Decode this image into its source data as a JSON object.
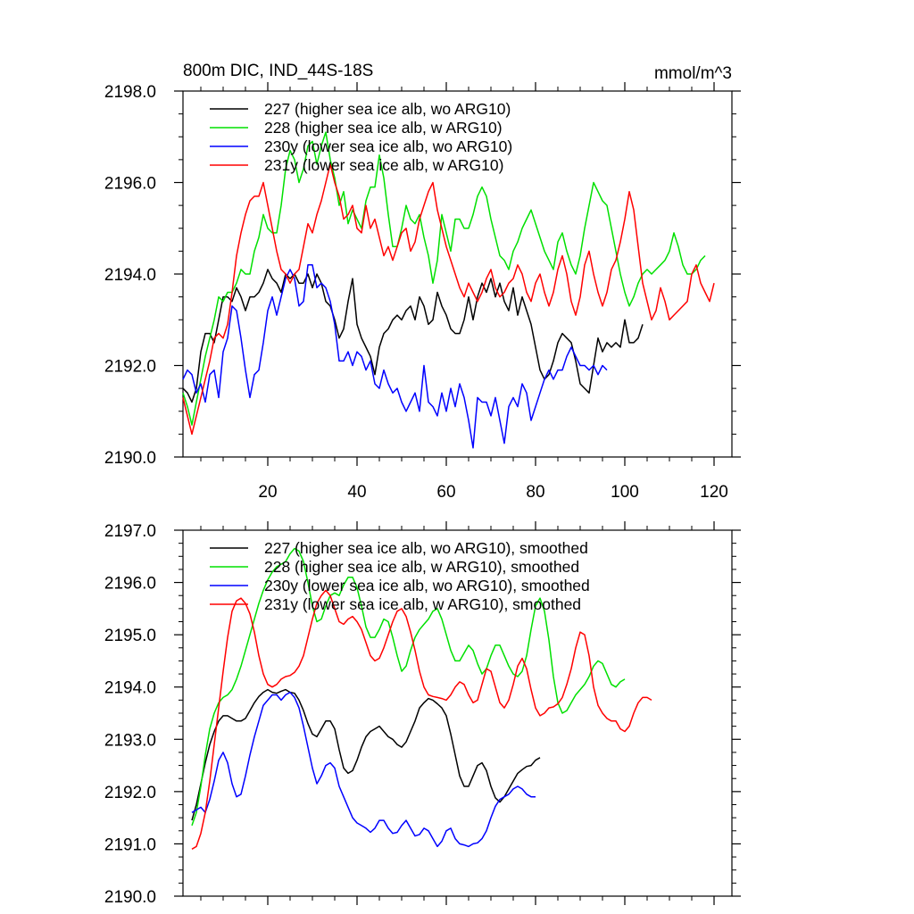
{
  "colors": {
    "227": "#000000",
    "228": "#00e000",
    "230": "#0000ff",
    "231": "#ff0000",
    "axis": "#000000"
  },
  "chart_data": [
    {
      "type": "line",
      "title": "800m DIC, IND_44S-18S",
      "unit_label": "mmol/m^3",
      "xlim": [
        1,
        124
      ],
      "ylim": [
        2190.0,
        2198.0
      ],
      "yticks": [
        2190.0,
        2192.0,
        2194.0,
        2196.0,
        2198.0
      ],
      "ytick_labels": [
        "2190.0",
        "2192.0",
        "2194.0",
        "2196.0",
        "2198.0"
      ],
      "xticks": [
        20,
        40,
        60,
        80,
        100,
        120
      ],
      "xtick_labels": [
        "20",
        "40",
        "60",
        "80",
        "100",
        "120"
      ],
      "series": [
        {
          "name": "227 (higher sea ice alb, wo ARG10)",
          "color_key": "227",
          "x_start": 1,
          "values": [
            2191.5,
            2191.4,
            2191.2,
            2191.5,
            2192.3,
            2192.7,
            2192.7,
            2192.5,
            2193.0,
            2193.5,
            2193.5,
            2193.4,
            2193.7,
            2193.5,
            2193.2,
            2193.5,
            2193.5,
            2193.6,
            2193.8,
            2194.1,
            2193.9,
            2193.8,
            2193.6,
            2194.0,
            2193.9,
            2194.0,
            2193.8,
            2193.8,
            2194.0,
            2193.7,
            2194.0,
            2193.8,
            2193.4,
            2193.3,
            2193.0,
            2192.6,
            2192.8,
            2193.4,
            2193.9,
            2192.9,
            2192.6,
            2192.4,
            2192.2,
            2191.8,
            2192.4,
            2192.7,
            2192.8,
            2193.0,
            2193.1,
            2193.0,
            2193.2,
            2193.3,
            2193.0,
            2193.5,
            2193.3,
            2192.9,
            2193.0,
            2193.6,
            2193.3,
            2193.1,
            2192.8,
            2192.7,
            2192.7,
            2193.0,
            2193.5,
            2193.0,
            2193.5,
            2193.8,
            2193.6,
            2193.9,
            2193.5,
            2193.8,
            2193.4,
            2193.2,
            2193.7,
            2193.1,
            2193.5,
            2193.2,
            2192.9,
            2192.4,
            2191.9,
            2191.7,
            2191.8,
            2192.1,
            2192.5,
            2192.7,
            2192.6,
            2192.5,
            2192.1,
            2191.6,
            2191.5,
            2191.4,
            2192.0,
            2192.6,
            2192.3,
            2192.5,
            2192.4,
            2192.5,
            2192.4,
            2193.0,
            2192.5,
            2192.5,
            2192.6,
            2192.9
          ]
        },
        {
          "name": "228 (higher sea ice alb, w ARG10)",
          "color_key": "228",
          "x_start": 1,
          "values": [
            2191.4,
            2191.1,
            2190.7,
            2191.2,
            2191.7,
            2192.2,
            2192.6,
            2193.0,
            2193.5,
            2193.4,
            2193.6,
            2193.6,
            2193.8,
            2194.1,
            2194.0,
            2194.0,
            2194.5,
            2194.8,
            2195.3,
            2195.0,
            2194.9,
            2194.9,
            2195.5,
            2196.3,
            2196.7,
            2196.5,
            2196.0,
            2196.3,
            2196.8,
            2196.9,
            2196.4,
            2196.8,
            2197.1,
            2196.5,
            2196.1,
            2195.5,
            2195.8,
            2195.1,
            2195.4,
            2195.2,
            2195.0,
            2195.6,
            2195.9,
            2195.9,
            2196.6,
            2196.1,
            2195.3,
            2194.6,
            2194.6,
            2195.0,
            2195.5,
            2195.2,
            2195.1,
            2195.3,
            2194.8,
            2194.4,
            2193.8,
            2194.3,
            2195.3,
            2194.9,
            2194.5,
            2195.2,
            2195.2,
            2195.0,
            2195.0,
            2195.3,
            2195.7,
            2195.9,
            2195.7,
            2195.2,
            2194.8,
            2194.4,
            2194.3,
            2194.1,
            2194.5,
            2194.7,
            2195.0,
            2195.2,
            2195.4,
            2195.1,
            2194.8,
            2194.5,
            2194.3,
            2194.1,
            2194.7,
            2194.9,
            2194.5,
            2194.2,
            2194.0,
            2194.4,
            2195.0,
            2195.5,
            2196.0,
            2195.8,
            2195.6,
            2195.5,
            2195.0,
            2194.5,
            2194.0,
            2193.6,
            2193.3,
            2193.5,
            2193.8,
            2194.0,
            2194.1,
            2194.0,
            2194.1,
            2194.2,
            2194.3,
            2194.5,
            2194.9,
            2194.6,
            2194.2,
            2194.0,
            2194.0,
            2194.1,
            2194.3,
            2194.4
          ]
        },
        {
          "name": "230y (lower sea ice alb, wo ARG10)",
          "color_key": "230",
          "x_start": 1,
          "values": [
            2191.7,
            2191.9,
            2191.8,
            2191.4,
            2191.6,
            2191.2,
            2191.8,
            2191.9,
            2191.3,
            2192.3,
            2192.6,
            2193.3,
            2193.2,
            2192.6,
            2191.9,
            2191.3,
            2191.8,
            2191.9,
            2192.5,
            2193.2,
            2193.5,
            2193.1,
            2193.5,
            2193.9,
            2194.1,
            2193.9,
            2193.3,
            2193.4,
            2194.2,
            2194.2,
            2193.7,
            2193.8,
            2193.7,
            2193.4,
            2192.9,
            2192.1,
            2192.1,
            2192.3,
            2192.0,
            2192.3,
            2192.2,
            2191.9,
            2192.1,
            2191.6,
            2191.5,
            2191.9,
            2191.6,
            2191.4,
            2191.5,
            2191.2,
            2191.0,
            2191.2,
            2191.4,
            2191.0,
            2192.0,
            2191.2,
            2191.1,
            2190.9,
            2191.4,
            2191.0,
            2191.5,
            2191.1,
            2191.6,
            2191.3,
            2190.8,
            2190.2,
            2191.3,
            2191.2,
            2191.2,
            2190.9,
            2191.3,
            2190.8,
            2190.3,
            2191.1,
            2191.3,
            2191.1,
            2191.6,
            2191.4,
            2190.8,
            2191.1,
            2191.4,
            2191.7,
            2191.9,
            2191.7,
            2191.9,
            2191.9,
            2192.2,
            2192.4,
            2192.2,
            2192.0,
            2192.0,
            2191.9,
            2192.0,
            2191.8,
            2192.0,
            2191.9
          ]
        },
        {
          "name": "231y (lower sea ice alb, w ARG10)",
          "color_key": "231",
          "x_start": 1,
          "values": [
            2191.3,
            2190.9,
            2190.5,
            2190.9,
            2191.3,
            2191.7,
            2192.1,
            2192.6,
            2192.7,
            2192.6,
            2192.9,
            2193.6,
            2194.4,
            2194.9,
            2195.3,
            2195.6,
            2195.7,
            2195.7,
            2196.0,
            2195.5,
            2195.0,
            2194.5,
            2194.1,
            2194.0,
            2193.8,
            2194.0,
            2194.1,
            2194.6,
            2195.1,
            2194.9,
            2195.3,
            2195.6,
            2196.0,
            2196.4,
            2196.0,
            2195.7,
            2195.2,
            2195.3,
            2195.5,
            2195.0,
            2194.9,
            2195.5,
            2195.0,
            2195.2,
            2194.8,
            2194.4,
            2194.6,
            2194.3,
            2194.6,
            2194.9,
            2195.0,
            2194.5,
            2194.7,
            2195.2,
            2195.5,
            2195.8,
            2196.0,
            2195.4,
            2195.0,
            2194.6,
            2194.3,
            2194.0,
            2193.7,
            2193.5,
            2193.8,
            2193.6,
            2193.4,
            2193.6,
            2193.9,
            2194.1,
            2193.7,
            2193.5,
            2193.6,
            2193.8,
            2193.9,
            2194.2,
            2194.0,
            2193.6,
            2193.4,
            2193.8,
            2194.0,
            2193.6,
            2193.3,
            2193.6,
            2194.1,
            2194.4,
            2194.0,
            2193.4,
            2193.1,
            2193.5,
            2194.2,
            2194.5,
            2194.0,
            2193.6,
            2193.3,
            2193.6,
            2194.1,
            2194.3,
            2194.7,
            2195.2,
            2195.8,
            2195.4,
            2194.6,
            2193.8,
            2193.4,
            2193.0,
            2193.2,
            2193.7,
            2193.4,
            2193.0,
            2193.1,
            2193.2,
            2193.3,
            2193.4,
            2194.0,
            2194.2,
            2193.8,
            2193.6,
            2193.4,
            2193.8
          ]
        }
      ]
    },
    {
      "type": "line",
      "xlim": [
        1,
        124
      ],
      "ylim": [
        2190.0,
        2197.0
      ],
      "yticks": [
        2190.0,
        2191.0,
        2192.0,
        2193.0,
        2194.0,
        2195.0,
        2196.0,
        2197.0
      ],
      "ytick_labels": [
        "2190.0",
        "2191.0",
        "2192.0",
        "2193.0",
        "2194.0",
        "2195.0",
        "2196.0",
        "2197.0"
      ],
      "xticks": [
        20,
        40,
        60,
        80,
        100,
        120
      ],
      "series": [
        {
          "name": "227 (higher sea ice alb, wo ARG10), smoothed",
          "color_key": "227",
          "x_start": 3,
          "values": [
            2191.45,
            2191.75,
            2192.15,
            2192.55,
            2192.9,
            2193.15,
            2193.35,
            2193.45,
            2193.45,
            2193.4,
            2193.35,
            2193.35,
            2193.4,
            2193.55,
            2193.7,
            2193.82,
            2193.9,
            2193.95,
            2193.9,
            2193.88,
            2193.92,
            2193.95,
            2193.9,
            2193.88,
            2193.75,
            2193.55,
            2193.3,
            2193.1,
            2193.05,
            2193.2,
            2193.35,
            2193.35,
            2193.2,
            2192.8,
            2192.45,
            2192.35,
            2192.4,
            2192.6,
            2192.85,
            2193.05,
            2193.15,
            2193.2,
            2193.25,
            2193.15,
            2193.05,
            2193.0,
            2192.9,
            2192.85,
            2192.95,
            2193.15,
            2193.35,
            2193.6,
            2193.7,
            2193.78,
            2193.75,
            2193.68,
            2193.6,
            2193.45,
            2193.1,
            2192.7,
            2192.3,
            2192.1,
            2192.1,
            2192.3,
            2192.5,
            2192.55,
            2192.4,
            2192.1,
            2191.88,
            2191.8,
            2191.9,
            2192.05,
            2192.2,
            2192.35,
            2192.42,
            2192.48,
            2192.5,
            2192.6,
            2192.65
          ]
        },
        {
          "name": "228 (higher sea ice alb, w ARG10), smoothed",
          "color_key": "228",
          "x_start": 3,
          "values": [
            2191.35,
            2191.6,
            2192.1,
            2192.7,
            2193.2,
            2193.5,
            2193.7,
            2193.8,
            2193.85,
            2193.95,
            2194.15,
            2194.4,
            2194.7,
            2195.0,
            2195.3,
            2195.6,
            2195.85,
            2196.05,
            2196.2,
            2196.3,
            2196.35,
            2196.4,
            2196.55,
            2196.65,
            2196.6,
            2196.4,
            2196.0,
            2195.55,
            2195.25,
            2195.3,
            2195.55,
            2195.75,
            2195.8,
            2195.75,
            2195.95,
            2196.1,
            2196.1,
            2195.9,
            2195.55,
            2195.15,
            2194.95,
            2194.95,
            2195.1,
            2195.3,
            2195.25,
            2194.95,
            2194.6,
            2194.3,
            2194.4,
            2194.7,
            2194.95,
            2195.1,
            2195.2,
            2195.3,
            2195.45,
            2195.5,
            2195.3,
            2195.0,
            2194.7,
            2194.5,
            2194.5,
            2194.65,
            2194.8,
            2194.7,
            2194.45,
            2194.25,
            2194.35,
            2194.6,
            2194.8,
            2194.8,
            2194.6,
            2194.4,
            2194.25,
            2194.2,
            2194.3,
            2194.6,
            2195.1,
            2195.55,
            2195.7,
            2195.45,
            2194.9,
            2194.2,
            2193.7,
            2193.5,
            2193.55,
            2193.7,
            2193.85,
            2193.95,
            2194.05,
            2194.2,
            2194.4,
            2194.5,
            2194.45,
            2194.25,
            2194.05,
            2194.0,
            2194.1,
            2194.15
          ]
        },
        {
          "name": "230y (lower sea ice alb, wo ARG10), smoothed",
          "color_key": "230",
          "x_start": 3,
          "values": [
            2191.6,
            2191.65,
            2191.7,
            2191.6,
            2191.85,
            2192.2,
            2192.6,
            2192.75,
            2192.55,
            2192.15,
            2191.9,
            2191.95,
            2192.3,
            2192.7,
            2193.05,
            2193.35,
            2193.65,
            2193.75,
            2193.85,
            2193.85,
            2193.75,
            2193.85,
            2193.9,
            2193.8,
            2193.6,
            2193.25,
            2192.85,
            2192.45,
            2192.15,
            2192.3,
            2192.5,
            2192.55,
            2192.45,
            2192.1,
            2191.9,
            2191.7,
            2191.5,
            2191.4,
            2191.35,
            2191.3,
            2191.22,
            2191.3,
            2191.45,
            2191.45,
            2191.3,
            2191.2,
            2191.22,
            2191.35,
            2191.45,
            2191.3,
            2191.15,
            2191.18,
            2191.3,
            2191.25,
            2191.1,
            2190.95,
            2191.05,
            2191.25,
            2191.3,
            2191.1,
            2191.0,
            2190.98,
            2190.95,
            2191.0,
            2191.02,
            2191.1,
            2191.25,
            2191.5,
            2191.72,
            2191.85,
            2191.9,
            2191.95,
            2192.05,
            2192.1,
            2192.05,
            2191.95,
            2191.9,
            2191.9
          ]
        },
        {
          "name": "231y (lower sea ice alb, w ARG10), smoothed",
          "color_key": "231",
          "x_start": 3,
          "values": [
            2190.9,
            2190.95,
            2191.2,
            2191.6,
            2192.2,
            2192.9,
            2193.6,
            2194.3,
            2194.95,
            2195.45,
            2195.65,
            2195.7,
            2195.6,
            2195.4,
            2195.05,
            2194.6,
            2194.25,
            2194.05,
            2194.0,
            2194.05,
            2194.15,
            2194.2,
            2194.22,
            2194.28,
            2194.4,
            2194.6,
            2194.95,
            2195.3,
            2195.6,
            2195.75,
            2195.85,
            2195.75,
            2195.5,
            2195.25,
            2195.2,
            2195.3,
            2195.35,
            2195.25,
            2195.1,
            2194.85,
            2194.6,
            2194.5,
            2194.55,
            2194.75,
            2195.0,
            2195.25,
            2195.45,
            2195.5,
            2195.35,
            2195.05,
            2194.7,
            2194.3,
            2194.0,
            2193.85,
            2193.82,
            2193.8,
            2193.78,
            2193.75,
            2193.85,
            2194.0,
            2194.1,
            2194.05,
            2193.85,
            2193.7,
            2193.75,
            2194.05,
            2194.35,
            2194.3,
            2194.0,
            2193.7,
            2193.6,
            2193.75,
            2194.05,
            2194.4,
            2194.55,
            2194.35,
            2193.95,
            2193.6,
            2193.45,
            2193.5,
            2193.6,
            2193.62,
            2193.68,
            2193.8,
            2194.05,
            2194.35,
            2194.75,
            2195.05,
            2195.0,
            2194.6,
            2194.0,
            2193.65,
            2193.5,
            2193.4,
            2193.35,
            2193.35,
            2193.2,
            2193.15,
            2193.25,
            2193.5,
            2193.7,
            2193.8,
            2193.8,
            2193.75
          ]
        }
      ]
    }
  ]
}
